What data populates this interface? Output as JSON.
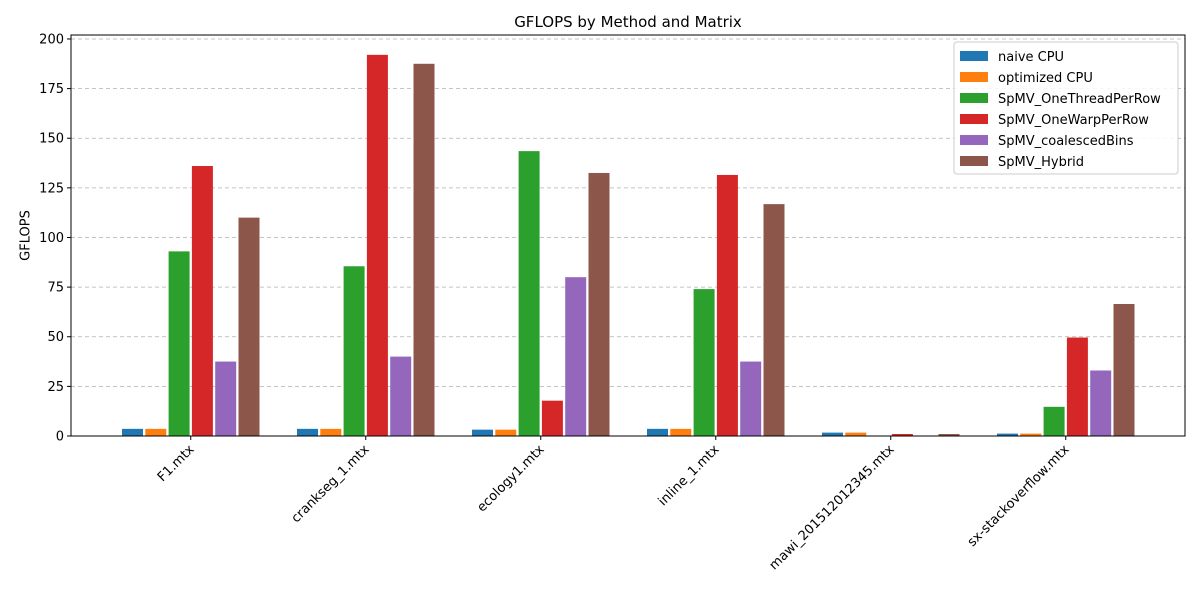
{
  "chart_data": {
    "type": "bar",
    "title": "GFLOPS by Method and Matrix",
    "xlabel": "",
    "ylabel": "GFLOPS",
    "ylim": [
      0,
      202
    ],
    "yticks": [
      0,
      25,
      50,
      75,
      100,
      125,
      150,
      175,
      200
    ],
    "grid": "y-dashed",
    "legend_position": "top-right",
    "categories": [
      "F1.mtx",
      "crankseg_1.mtx",
      "ecology1.mtx",
      "inline_1.mtx",
      "mawi_201512012345.mtx",
      "sx-stackoverflow.mtx"
    ],
    "series": [
      {
        "name": "naive CPU",
        "color": "#1f77b4",
        "values": [
          3.6,
          3.6,
          3.2,
          3.6,
          1.7,
          1.2
        ]
      },
      {
        "name": "optimized CPU",
        "color": "#ff7f0e",
        "values": [
          3.6,
          3.6,
          3.2,
          3.6,
          1.7,
          1.2
        ]
      },
      {
        "name": "SpMV_OneThreadPerRow",
        "color": "#2ca02c",
        "values": [
          93,
          85.5,
          143.5,
          74,
          0.2,
          14.7
        ]
      },
      {
        "name": "SpMV_OneWarpPerRow",
        "color": "#d62728",
        "values": [
          136,
          192,
          17.8,
          131.5,
          1.0,
          49.6
        ]
      },
      {
        "name": "SpMV_coalescedBins",
        "color": "#9467bd",
        "values": [
          37.5,
          40,
          80,
          37.5,
          0,
          33
        ]
      },
      {
        "name": "SpMV_Hybrid",
        "color": "#8c564b",
        "values": [
          110,
          187.5,
          132.5,
          116.8,
          1.0,
          66.5
        ]
      }
    ]
  }
}
